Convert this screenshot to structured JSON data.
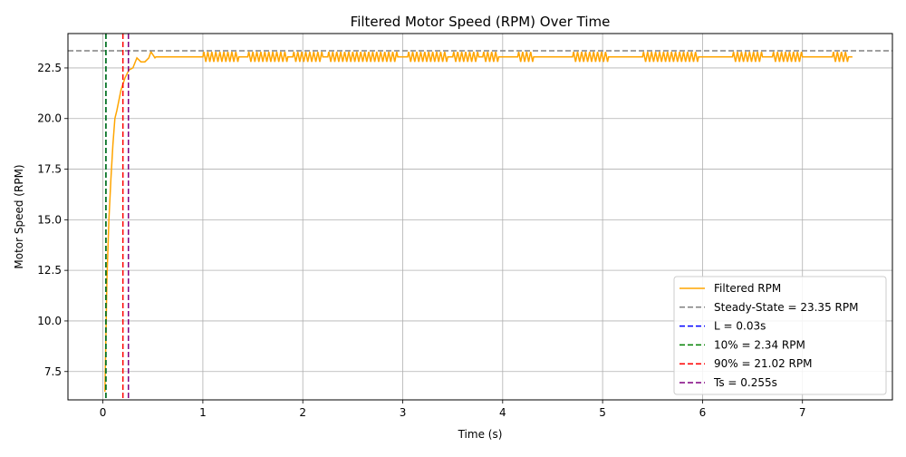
{
  "chart_data": {
    "type": "line",
    "title": "Filtered Motor Speed (RPM) Over Time",
    "xlabel": "Time (s)",
    "ylabel": "Motor Speed (RPM)",
    "xlim": [
      -0.35,
      7.9
    ],
    "ylim": [
      6.1,
      24.2
    ],
    "xticks": [
      0,
      1,
      2,
      3,
      4,
      5,
      6,
      7
    ],
    "yticks": [
      7.5,
      10.0,
      12.5,
      15.0,
      17.5,
      20.0,
      22.5
    ],
    "ytick_labels": [
      "7.5",
      "10.0",
      "12.5",
      "15.0",
      "17.5",
      "20.0",
      "22.5"
    ],
    "grid": true,
    "legend_position": "lower-right",
    "series": [
      {
        "name": "Filtered RPM",
        "color": "#ffa500",
        "style": "solid",
        "start": [
          [
            0.02,
            6.5
          ],
          [
            0.04,
            12.0
          ],
          [
            0.06,
            15.0
          ],
          [
            0.08,
            17.0
          ],
          [
            0.1,
            18.7
          ],
          [
            0.12,
            20.0
          ],
          [
            0.14,
            20.4
          ],
          [
            0.18,
            21.4
          ],
          [
            0.22,
            22.0
          ],
          [
            0.26,
            22.4
          ],
          [
            0.3,
            22.5
          ],
          [
            0.34,
            23.0
          ],
          [
            0.38,
            22.8
          ],
          [
            0.42,
            22.8
          ],
          [
            0.46,
            23.0
          ],
          [
            0.48,
            23.3
          ],
          [
            0.52,
            23.0
          ]
        ],
        "base_value": 23.05,
        "high_value": 23.3,
        "low_value": 22.8,
        "x_end": 7.5,
        "oscillation_intervals": [
          [
            1.0,
            1.35
          ],
          [
            1.45,
            1.85
          ],
          [
            1.9,
            2.2
          ],
          [
            2.25,
            2.5
          ],
          [
            2.5,
            2.95
          ],
          [
            3.05,
            3.45
          ],
          [
            3.5,
            3.75
          ],
          [
            3.8,
            3.95
          ],
          [
            4.15,
            4.3
          ],
          [
            4.7,
            5.05
          ],
          [
            5.4,
            5.95
          ],
          [
            6.3,
            6.6
          ],
          [
            6.7,
            7.0
          ],
          [
            7.3,
            7.45
          ]
        ]
      },
      {
        "name": "Steady-State = 23.35 RPM",
        "color": "#808080",
        "style": "dashed",
        "orientation": "horizontal",
        "value": 23.35
      },
      {
        "name": "L = 0.03s",
        "color": "#0000ff",
        "style": "dashed",
        "orientation": "vertical",
        "value": 0.03
      },
      {
        "name": "10% = 2.34 RPM",
        "color": "#008000",
        "style": "dashed",
        "orientation": "vertical",
        "value": 0.03
      },
      {
        "name": "90% = 21.02 RPM",
        "color": "#ff0000",
        "style": "dashed",
        "orientation": "vertical",
        "value": 0.2
      },
      {
        "name": "Ts = 0.255s",
        "color": "#800080",
        "style": "dashed",
        "orientation": "vertical",
        "value": 0.255
      }
    ]
  }
}
